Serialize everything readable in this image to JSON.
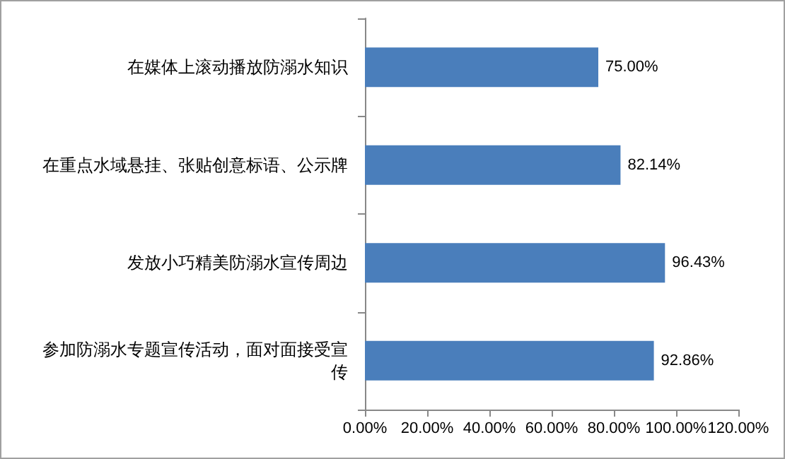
{
  "chart_data": {
    "type": "bar",
    "orientation": "horizontal",
    "categories": [
      "在媒体上滚动播放防溺水知识",
      "在重点水域悬挂、张贴创意标语、公示牌",
      "发放小巧精美防溺水宣传周边",
      "参加防溺水专题宣传活动，面对面接受宣传"
    ],
    "values": [
      75,
      82.14,
      96.43,
      92.86
    ],
    "value_labels": [
      "75.00%",
      "82.14%",
      "96.43%",
      "92.86%"
    ],
    "color": "#4a7ebb",
    "xlim": [
      0,
      120
    ],
    "xticks": [
      {
        "value": 0,
        "label": "0.00%"
      },
      {
        "value": 20,
        "label": "20.00%"
      },
      {
        "value": 40,
        "label": "40.00%"
      },
      {
        "value": 60,
        "label": "60.00%"
      },
      {
        "value": 80,
        "label": "80.00%"
      },
      {
        "value": 100,
        "label": "100.00%"
      },
      {
        "value": 120,
        "label": "120.00%"
      }
    ],
    "grid": false
  }
}
